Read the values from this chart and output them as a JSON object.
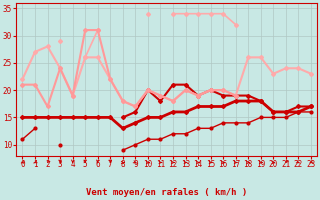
{
  "xlabel": "Vent moyen/en rafales ( km/h )",
  "xlim": [
    -0.5,
    23.5
  ],
  "ylim": [
    8,
    36
  ],
  "yticks": [
    10,
    15,
    20,
    25,
    30,
    35
  ],
  "xticks": [
    0,
    1,
    2,
    3,
    4,
    5,
    6,
    7,
    8,
    9,
    10,
    11,
    12,
    13,
    14,
    15,
    16,
    17,
    18,
    19,
    20,
    21,
    22,
    23
  ],
  "bg_color": "#c8e8e4",
  "grid_color": "#b0c8c4",
  "lines": [
    {
      "x": [
        0,
        1,
        2,
        3,
        4,
        5,
        6,
        7,
        8,
        9,
        10,
        11,
        12,
        13,
        14,
        15,
        16,
        17,
        18,
        19,
        20,
        21,
        22,
        23
      ],
      "y": [
        11,
        13,
        null,
        10,
        null,
        null,
        null,
        null,
        9,
        10,
        11,
        11,
        12,
        12,
        13,
        13,
        14,
        14,
        14,
        15,
        15,
        15,
        16,
        16
      ],
      "color": "#cc0000",
      "lw": 1.0,
      "marker": "o",
      "ms": 2,
      "ls": "-"
    },
    {
      "x": [
        0,
        1,
        2,
        3,
        4,
        5,
        6,
        7,
        8,
        9,
        10,
        11,
        12,
        13,
        14,
        15,
        16,
        17,
        18,
        19,
        20,
        21,
        22,
        23
      ],
      "y": [
        15,
        15,
        15,
        15,
        15,
        15,
        15,
        15,
        13,
        14,
        15,
        15,
        16,
        16,
        17,
        17,
        17,
        18,
        18,
        18,
        16,
        16,
        16,
        17
      ],
      "color": "#cc0000",
      "lw": 2.0,
      "marker": "D",
      "ms": 2,
      "ls": "-"
    },
    {
      "x": [
        8,
        9,
        10,
        11,
        12,
        13,
        14,
        15,
        16,
        17,
        18,
        19,
        20,
        21,
        22,
        23
      ],
      "y": [
        15,
        16,
        20,
        18,
        21,
        21,
        19,
        20,
        19,
        19,
        19,
        18,
        16,
        16,
        17,
        17
      ],
      "color": "#cc0000",
      "lw": 1.5,
      "marker": "D",
      "ms": 2,
      "ls": "-"
    },
    {
      "x": [
        0,
        1,
        2,
        3,
        4,
        5,
        6,
        7,
        8,
        9,
        10,
        11,
        12,
        13,
        14,
        15,
        16,
        17,
        18,
        19,
        20,
        21,
        22,
        23
      ],
      "y": [
        null,
        null,
        null,
        null,
        null,
        null,
        null,
        null,
        null,
        null,
        34,
        null,
        34,
        34,
        34,
        34,
        34,
        32,
        null,
        null,
        null,
        null,
        null,
        null
      ],
      "color": "#ffaaaa",
      "lw": 1.2,
      "marker": "D",
      "ms": 2,
      "ls": "-"
    },
    {
      "x": [
        0,
        1,
        2,
        3,
        4,
        5,
        6,
        7,
        8,
        9,
        10,
        11,
        12,
        13,
        14,
        15,
        16,
        17,
        18,
        19,
        20,
        21,
        22,
        23
      ],
      "y": [
        null,
        null,
        null,
        29,
        null,
        26,
        31,
        null,
        null,
        null,
        null,
        null,
        null,
        null,
        null,
        null,
        null,
        null,
        null,
        null,
        null,
        null,
        null,
        null
      ],
      "color": "#ffaaaa",
      "lw": 1.2,
      "marker": "D",
      "ms": 2,
      "ls": "-"
    },
    {
      "x": [
        0,
        1,
        2,
        3,
        4,
        5,
        6,
        7,
        8,
        9,
        10,
        11,
        12,
        13,
        14,
        15,
        16,
        17,
        18,
        19,
        20,
        21,
        22,
        23
      ],
      "y": [
        22,
        27,
        28,
        24,
        19,
        26,
        26,
        22,
        18,
        17,
        20,
        19,
        18,
        20,
        19,
        20,
        20,
        19,
        26,
        26,
        23,
        24,
        24,
        23
      ],
      "color": "#ffaaaa",
      "lw": 1.5,
      "marker": "D",
      "ms": 2,
      "ls": "-"
    },
    {
      "x": [
        0,
        1,
        2,
        3,
        4,
        5,
        6,
        7,
        8,
        9,
        10,
        11,
        12,
        13,
        14,
        15,
        16,
        17,
        18,
        19,
        20,
        21,
        22,
        23
      ],
      "y": [
        21,
        21,
        17,
        24,
        19,
        31,
        31,
        22,
        18,
        17,
        20,
        19,
        18,
        20,
        19,
        20,
        20,
        19,
        null,
        null,
        null,
        null,
        null,
        null
      ],
      "color": "#ff9999",
      "lw": 1.5,
      "marker": "D",
      "ms": 2,
      "ls": "-"
    }
  ],
  "wind_dirs": [
    225,
    225,
    200,
    180,
    180,
    180,
    180,
    180,
    90,
    135,
    90,
    90,
    90,
    90,
    90,
    90,
    90,
    90,
    90,
    90,
    90,
    200,
    135,
    225
  ],
  "arrow_color": "#cc0000"
}
